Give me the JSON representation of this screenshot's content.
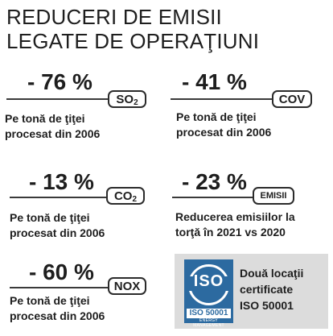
{
  "title": {
    "line1": "REDUCERI DE EMISII",
    "line2": "LEGATE DE OPERAŢIUNI"
  },
  "stats": [
    {
      "value": "- 76 %",
      "tag": "SO",
      "tag_sub": "2",
      "desc": [
        "Pe tonă de ţiţei",
        "procesat din 2006"
      ]
    },
    {
      "value": "- 41 %",
      "tag": "COV",
      "tag_sub": "",
      "desc": [
        "Pe tonă de ţiţei",
        "procesat din 2006"
      ]
    },
    {
      "value": "- 13 %",
      "tag": "CO",
      "tag_sub": "2",
      "desc": [
        "Pe tonă de ţiţei",
        "procesat din 2006"
      ]
    },
    {
      "value": "- 23 %",
      "tag": "EMISII",
      "tag_sub": "",
      "desc": [
        "Reducerea emisiilor la",
        "torţă în 2021 vs 2020"
      ]
    },
    {
      "value": "- 60 %",
      "tag": "NOX",
      "tag_sub": "",
      "desc": [
        "Pe tonă de ţiţei",
        "procesat din 2006"
      ]
    }
  ],
  "iso": {
    "logo_word": "ISO",
    "logo_code": "ISO 50001",
    "logo_fine": "ENERGY MANAGEMENT",
    "text": [
      "Două locaţii",
      "certificate",
      "ISO 50001"
    ]
  },
  "colors": {
    "text": "#1e1e1e",
    "iso_blue": "#2c6aa0",
    "iso_bg": "#dcdcdc"
  }
}
